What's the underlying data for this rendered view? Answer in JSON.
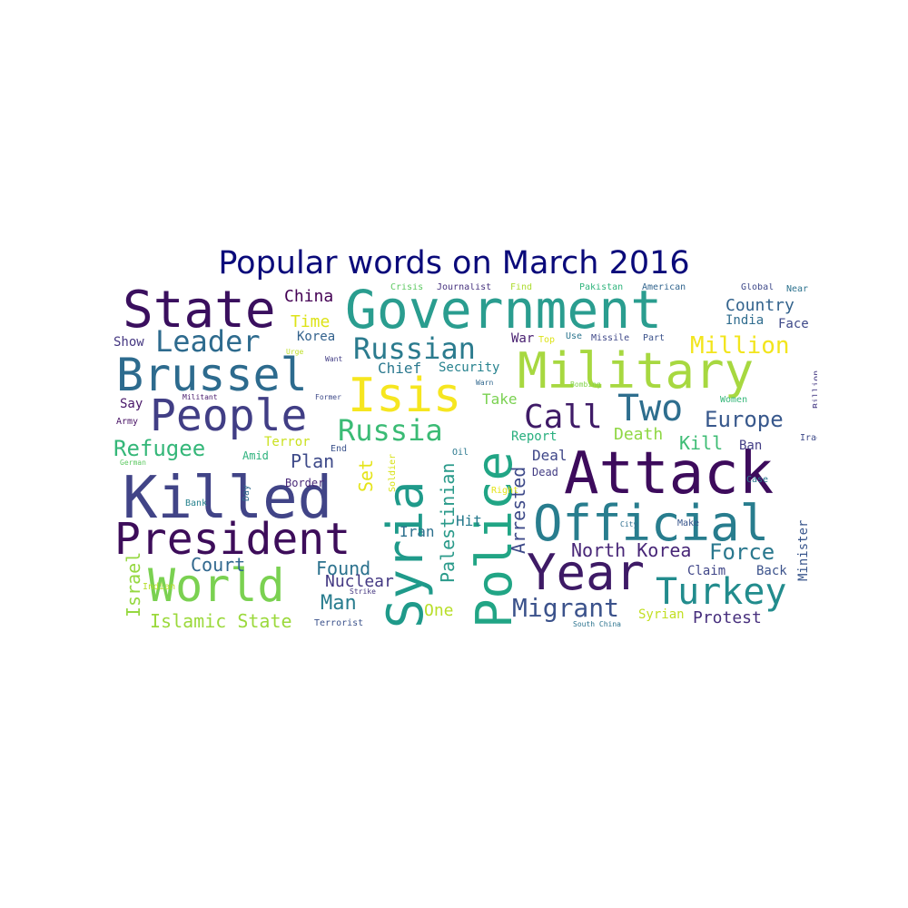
{
  "title": "Popular words on March 2016",
  "words": [
    {
      "text": "Government",
      "color": "#2a9d8f"
    },
    {
      "text": "Military",
      "color": "#a7d840"
    },
    {
      "text": "Attack",
      "color": "#3d0b5c"
    },
    {
      "text": "Killed",
      "color": "#414487"
    },
    {
      "text": "State",
      "color": "#3a0f5e"
    },
    {
      "text": "Brussel",
      "color": "#2d6b8e"
    },
    {
      "text": "Official",
      "color": "#287d8e"
    },
    {
      "text": "People",
      "color": "#413e85"
    },
    {
      "text": "President",
      "color": "#3d0d5a"
    },
    {
      "text": "World",
      "color": "#7ad151"
    },
    {
      "text": "Police",
      "color": "#21a585"
    },
    {
      "text": "Syria",
      "color": "#1f9a8a"
    },
    {
      "text": "Year",
      "color": "#3e1a66"
    },
    {
      "text": "Isis",
      "color": "#f6e620"
    },
    {
      "text": "Turkey",
      "color": "#228c8d"
    },
    {
      "text": "Russian",
      "color": "#2b7b8e"
    },
    {
      "text": "Russia",
      "color": "#3bbb75"
    },
    {
      "text": "Two",
      "color": "#2e6e8e"
    },
    {
      "text": "Call",
      "color": "#3f1b67"
    },
    {
      "text": "Leader",
      "color": "#2e6b8e"
    },
    {
      "text": "Million",
      "color": "#f2e51d"
    },
    {
      "text": "Refugee",
      "color": "#35b779"
    },
    {
      "text": "Europe",
      "color": "#38588c"
    },
    {
      "text": "Migrant",
      "color": "#3b528b"
    },
    {
      "text": "Force",
      "color": "#2a788e"
    },
    {
      "text": "Country",
      "color": "#33638d"
    },
    {
      "text": "North Korea",
      "color": "#482677"
    },
    {
      "text": "Palestinian",
      "color": "#2a9a8a"
    },
    {
      "text": "Arrested",
      "color": "#3e4a89"
    },
    {
      "text": "Islamic State",
      "color": "#9bd93c"
    },
    {
      "text": "Death",
      "color": "#8fd744"
    },
    {
      "text": "Kill",
      "color": "#3dbc74"
    },
    {
      "text": "China",
      "color": "#440154"
    },
    {
      "text": "Man",
      "color": "#287c8e"
    },
    {
      "text": "Protest",
      "color": "#472f7d"
    },
    {
      "text": "Court",
      "color": "#31688e"
    },
    {
      "text": "Found",
      "color": "#2c728e"
    },
    {
      "text": "Plan",
      "color": "#3e4a89"
    },
    {
      "text": "Time",
      "color": "#dde318"
    },
    {
      "text": "Chief",
      "color": "#2a788e"
    },
    {
      "text": "Security",
      "color": "#26828e"
    },
    {
      "text": "Nuclear",
      "color": "#443983"
    },
    {
      "text": "Israel",
      "color": "#95d840"
    },
    {
      "text": "Minister",
      "color": "#39568c"
    },
    {
      "text": "Set",
      "color": "#e5e419"
    },
    {
      "text": "Take",
      "color": "#7ad151"
    },
    {
      "text": "Deal",
      "color": "#3f4788"
    },
    {
      "text": "Ban",
      "color": "#433e85"
    },
    {
      "text": "Report",
      "color": "#29af7f"
    },
    {
      "text": "Hit",
      "color": "#297b8e"
    },
    {
      "text": "Iran",
      "color": "#2d708e"
    },
    {
      "text": "Claim",
      "color": "#404688"
    },
    {
      "text": "Back",
      "color": "#3b528b"
    },
    {
      "text": "One",
      "color": "#b8de29"
    },
    {
      "text": "Syrian",
      "color": "#c2df23"
    },
    {
      "text": "Face",
      "color": "#3e4989"
    },
    {
      "text": "India",
      "color": "#2f6c8e"
    },
    {
      "text": "Korea",
      "color": "#33628d"
    },
    {
      "text": "Show",
      "color": "#453781"
    },
    {
      "text": "Say",
      "color": "#481769"
    },
    {
      "text": "War",
      "color": "#481f70"
    },
    {
      "text": "Terror",
      "color": "#cae11f"
    },
    {
      "text": "Amid",
      "color": "#2db27d"
    },
    {
      "text": "Border",
      "color": "#482878"
    },
    {
      "text": "End",
      "color": "#3b528b"
    },
    {
      "text": "Dead",
      "color": "#433d84"
    },
    {
      "text": "Crisis",
      "color": "#5ec962"
    },
    {
      "text": "Journalist",
      "color": "#46327e"
    },
    {
      "text": "Find",
      "color": "#addc30"
    },
    {
      "text": "Pakistan",
      "color": "#2fb47c"
    },
    {
      "text": "American",
      "color": "#32658e"
    },
    {
      "text": "Global",
      "color": "#3e4989"
    },
    {
      "text": "Near",
      "color": "#2c728e"
    },
    {
      "text": "Top",
      "color": "#dde318"
    },
    {
      "text": "Use",
      "color": "#2b758e"
    },
    {
      "text": "Missile",
      "color": "#3f4889"
    },
    {
      "text": "Part",
      "color": "#3b528b"
    },
    {
      "text": "Bombing",
      "color": "#84d44b"
    },
    {
      "text": "Women",
      "color": "#35b779"
    },
    {
      "text": "Billion",
      "color": "#443983"
    },
    {
      "text": "Iraq",
      "color": "#3e4a89"
    },
    {
      "text": "Case",
      "color": "#2a788e"
    },
    {
      "text": "Make",
      "color": "#39568c"
    },
    {
      "text": "City",
      "color": "#2e6e8e"
    },
    {
      "text": "South China",
      "color": "#2c738e"
    },
    {
      "text": "Strike",
      "color": "#453781"
    },
    {
      "text": "Terrorist",
      "color": "#3b528b"
    },
    {
      "text": "Indian",
      "color": "#b5de2b"
    },
    {
      "text": "Bank",
      "color": "#26828e"
    },
    {
      "text": "Day",
      "color": "#2f6b8e"
    },
    {
      "text": "German",
      "color": "#5ec962"
    },
    {
      "text": "Army",
      "color": "#471164"
    },
    {
      "text": "Militant",
      "color": "#481a6c"
    },
    {
      "text": "Former",
      "color": "#3e4a89"
    },
    {
      "text": "Urge",
      "color": "#bddf26"
    },
    {
      "text": "Want",
      "color": "#433e85"
    },
    {
      "text": "Warn",
      "color": "#31688e"
    },
    {
      "text": "Oil",
      "color": "#2a788e"
    },
    {
      "text": "Soldier",
      "color": "#d8e219"
    },
    {
      "text": "Right",
      "color": "#e5e419"
    }
  ]
}
